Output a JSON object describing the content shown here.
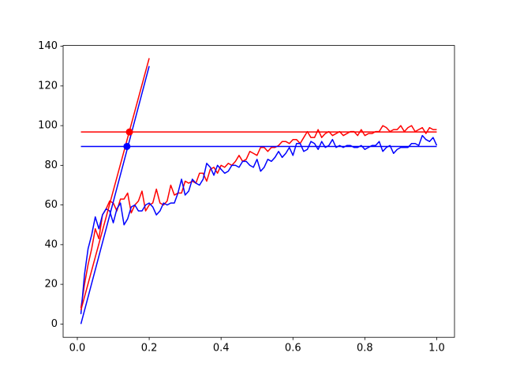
{
  "chart_data": {
    "type": "line",
    "xlim": [
      -0.0395,
      1.0495
    ],
    "ylim": [
      -6.7,
      140.4
    ],
    "xticks": [
      {
        "value": 0,
        "label": "0.0"
      },
      0.2,
      0.4,
      0.6,
      0.8,
      {
        "value": 1,
        "label": "1.0"
      }
    ],
    "yticks": [
      0,
      20,
      40,
      60,
      80,
      100,
      120,
      140
    ],
    "series": [
      {
        "color": "#ff0000",
        "x": [
          0.01,
          0.02,
          0.03,
          0.04,
          0.05,
          0.06,
          0.07,
          0.08,
          0.09,
          0.1,
          0.11,
          0.12,
          0.13,
          0.14,
          0.15,
          0.16,
          0.17,
          0.18,
          0.19,
          0.2,
          0.21,
          0.22,
          0.23,
          0.24,
          0.25,
          0.26,
          0.27,
          0.28,
          0.29,
          0.3,
          0.31,
          0.32,
          0.33,
          0.34,
          0.35,
          0.36,
          0.37,
          0.38,
          0.39,
          0.4,
          0.41,
          0.42,
          0.43,
          0.44,
          0.45,
          0.46,
          0.47,
          0.48,
          0.49,
          0.5,
          0.51,
          0.52,
          0.53,
          0.54,
          0.55,
          0.56,
          0.57,
          0.58,
          0.59,
          0.6,
          0.61,
          0.62,
          0.63,
          0.64,
          0.65,
          0.66,
          0.67,
          0.68,
          0.69,
          0.7,
          0.71,
          0.72,
          0.73,
          0.74,
          0.75,
          0.76,
          0.77,
          0.78,
          0.79,
          0.8,
          0.81,
          0.82,
          0.83,
          0.84,
          0.85,
          0.86,
          0.87,
          0.88,
          0.89,
          0.9,
          0.91,
          0.92,
          0.93,
          0.94,
          0.95,
          0.96,
          0.97,
          0.98,
          0.99,
          1.0
        ],
        "values": [
          8,
          20,
          30,
          38,
          48,
          43,
          55,
          58,
          62,
          61,
          57,
          63,
          63,
          66,
          56,
          60,
          62,
          67,
          57,
          60,
          61,
          68,
          61,
          60,
          62,
          70,
          65,
          66,
          66,
          72,
          71,
          72,
          71,
          76,
          76,
          72,
          78,
          79,
          76,
          80,
          79,
          81,
          80,
          82,
          85,
          82,
          83,
          87,
          86,
          85,
          89,
          89,
          87,
          89,
          89,
          90,
          92,
          92,
          91,
          93,
          93,
          91,
          94,
          97,
          94,
          94,
          98,
          94,
          96,
          97,
          95,
          96,
          97,
          95,
          96,
          97,
          97,
          95,
          98,
          95,
          96,
          96,
          97,
          97,
          100,
          99,
          97,
          98,
          98,
          100,
          97,
          99,
          100,
          97,
          98,
          99,
          96,
          99,
          98,
          98
        ]
      },
      {
        "color": "#0000ff",
        "x": [
          0.01,
          0.02,
          0.03,
          0.04,
          0.05,
          0.06,
          0.07,
          0.08,
          0.09,
          0.1,
          0.11,
          0.12,
          0.13,
          0.14,
          0.15,
          0.16,
          0.17,
          0.18,
          0.19,
          0.2,
          0.21,
          0.22,
          0.23,
          0.24,
          0.25,
          0.26,
          0.27,
          0.28,
          0.29,
          0.3,
          0.31,
          0.32,
          0.33,
          0.34,
          0.35,
          0.36,
          0.37,
          0.38,
          0.39,
          0.4,
          0.41,
          0.42,
          0.43,
          0.44,
          0.45,
          0.46,
          0.47,
          0.48,
          0.49,
          0.5,
          0.51,
          0.52,
          0.53,
          0.54,
          0.55,
          0.56,
          0.57,
          0.58,
          0.59,
          0.6,
          0.61,
          0.62,
          0.63,
          0.64,
          0.65,
          0.66,
          0.67,
          0.68,
          0.69,
          0.7,
          0.71,
          0.72,
          0.73,
          0.74,
          0.75,
          0.76,
          0.77,
          0.78,
          0.79,
          0.8,
          0.81,
          0.82,
          0.83,
          0.84,
          0.85,
          0.86,
          0.87,
          0.88,
          0.89,
          0.9,
          0.91,
          0.92,
          0.93,
          0.94,
          0.95,
          0.96,
          0.97,
          0.98,
          0.99,
          1.0
        ],
        "values": [
          5,
          25,
          38,
          45,
          54,
          48,
          55,
          58,
          57,
          51,
          58,
          61,
          50,
          53,
          59,
          60,
          57,
          57,
          60,
          61,
          59,
          55,
          57,
          61,
          60,
          61,
          61,
          66,
          73,
          65,
          67,
          73,
          71,
          70,
          73,
          81,
          79,
          75,
          80,
          78,
          76,
          77,
          80,
          80,
          79,
          82,
          82,
          80,
          79,
          83,
          77,
          79,
          83,
          82,
          84,
          87,
          84,
          86,
          89,
          85,
          91,
          91,
          87,
          88,
          92,
          91,
          88,
          92,
          89,
          90,
          93,
          89,
          90,
          89,
          90,
          90,
          89,
          89,
          90,
          88,
          89,
          90,
          90,
          92,
          87,
          89,
          90,
          86,
          88,
          89,
          89,
          89,
          91,
          91,
          90,
          95,
          93,
          92,
          94,
          90
        ]
      },
      {
        "color": "#ff0000",
        "x": [
          0.01,
          0.2
        ],
        "values": [
          7,
          134
        ]
      },
      {
        "color": "#0000ff",
        "x": [
          0.01,
          0.2
        ],
        "values": [
          0,
          130
        ]
      },
      {
        "color": "#ff0000",
        "x": [
          0.01,
          1.0
        ],
        "values": [
          96.8,
          96.8
        ]
      },
      {
        "color": "#0000ff",
        "x": [
          0.01,
          1.0
        ],
        "values": [
          89.5,
          89.5
        ]
      },
      {
        "color": "#ff0000",
        "x": [
          0.145
        ],
        "values": [
          96.8
        ],
        "marker": "o"
      },
      {
        "color": "#0000ff",
        "x": [
          0.138
        ],
        "values": [
          89.5
        ],
        "marker": "o"
      }
    ]
  }
}
